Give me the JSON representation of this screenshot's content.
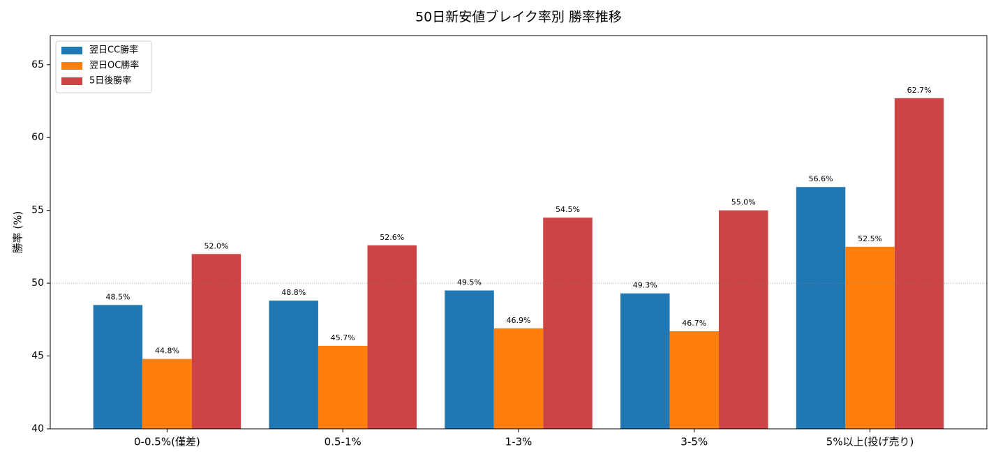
{
  "chart_data": {
    "type": "bar",
    "title": "50日新安値ブレイク率別 勝率推移",
    "ylabel": "勝率 (%)",
    "categories": [
      "0-0.5%(僅差)",
      "0.5-1%",
      "1-3%",
      "3-5%",
      "5%以上(投げ売り)"
    ],
    "series": [
      {
        "name": "翌日CC勝率",
        "color": "#1f77b4",
        "values": [
          48.5,
          48.8,
          49.5,
          49.3,
          56.6
        ],
        "value_labels": [
          "48.5%",
          "48.8%",
          "49.5%",
          "49.3%",
          "56.6%"
        ]
      },
      {
        "name": "翌日OC勝率",
        "color": "#ff7f0e",
        "values": [
          44.8,
          45.7,
          46.9,
          46.7,
          52.5
        ],
        "value_labels": [
          "44.8%",
          "45.7%",
          "46.9%",
          "46.7%",
          "52.5%"
        ]
      },
      {
        "name": "5日後勝率",
        "color": "#cc4444",
        "values": [
          52.0,
          52.6,
          54.5,
          55.0,
          62.7
        ],
        "value_labels": [
          "52.0%",
          "52.6%",
          "54.5%",
          "55.0%",
          "62.7%"
        ]
      }
    ],
    "ylim": [
      40,
      67
    ],
    "yticks": [
      40,
      45,
      50,
      55,
      60,
      65
    ],
    "hline": 50,
    "legend": "upper-left"
  }
}
